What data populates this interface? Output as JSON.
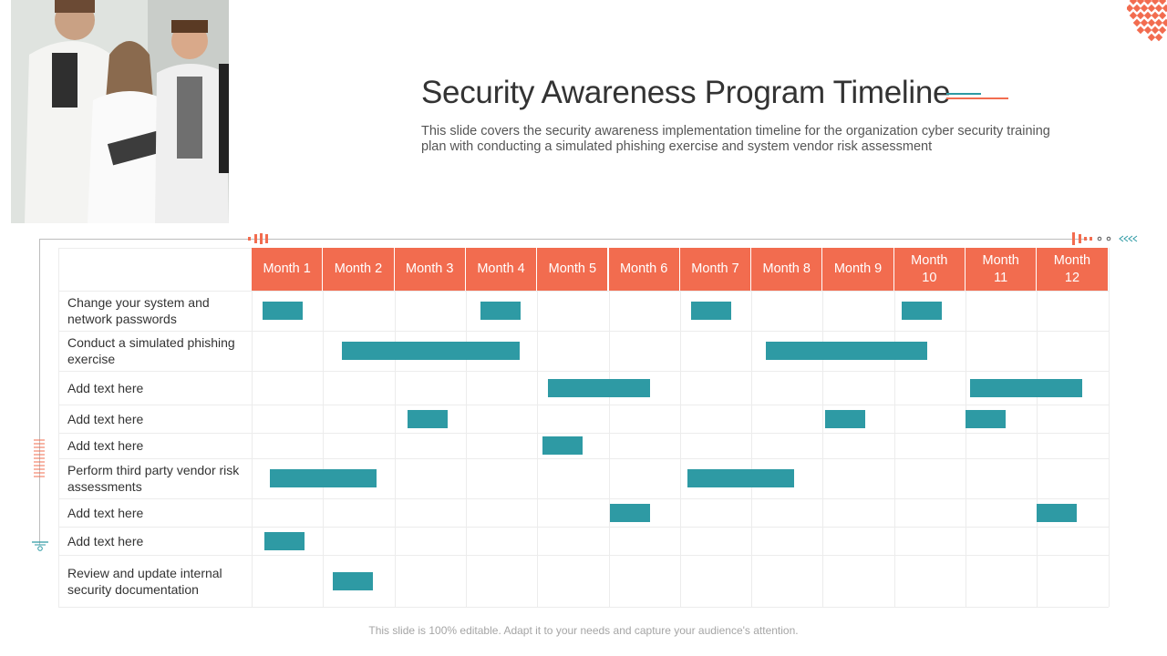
{
  "header": {
    "title": "Security Awareness Program Timeline",
    "subtitle": "This slide covers the security awareness implementation timeline for the organization cyber security training plan with conducting a simulated phishing exercise and system vendor risk assessment"
  },
  "photo": {
    "icon": "people-photo"
  },
  "colors": {
    "accent": "#f26c4f",
    "bar": "#2e9aa4",
    "title_deco_teal": "#2e9aa4"
  },
  "timeline": {
    "months": [
      "Month 1",
      "Month 2",
      "Month 3",
      "Month 4",
      "Month 5",
      "Month 6",
      "Month 7",
      "Month 8",
      "Month 9",
      "Month 10",
      "Month 11",
      "Month 12"
    ],
    "rows": [
      {
        "label": "Change your system and network passwords",
        "bars": [
          {
            "start": 1.15,
            "end": 1.72
          },
          {
            "start": 4.2,
            "end": 4.77
          },
          {
            "start": 7.15,
            "end": 7.72
          },
          {
            "start": 10.1,
            "end": 10.67
          }
        ]
      },
      {
        "label": "Conduct a simulated phishing exercise",
        "bars": [
          {
            "start": 2.26,
            "end": 4.75
          },
          {
            "start": 8.2,
            "end": 10.47
          }
        ]
      },
      {
        "label": "Add text here",
        "bars": [
          {
            "start": 5.15,
            "end": 6.58
          },
          {
            "start": 11.06,
            "end": 12.63
          }
        ]
      },
      {
        "label": "Add text here",
        "bars": [
          {
            "start": 3.18,
            "end": 3.74
          },
          {
            "start": 9.03,
            "end": 9.59
          },
          {
            "start": 11.0,
            "end": 11.56
          }
        ]
      },
      {
        "label": "Add text here",
        "bars": [
          {
            "start": 5.07,
            "end": 5.63
          }
        ]
      },
      {
        "label": "Perform third party vendor risk assessments",
        "bars": [
          {
            "start": 1.26,
            "end": 2.75
          },
          {
            "start": 7.11,
            "end": 8.6
          }
        ]
      },
      {
        "label": "Add text here",
        "bars": [
          {
            "start": 6.02,
            "end": 6.58
          },
          {
            "start": 12.0,
            "end": 12.56
          }
        ]
      },
      {
        "label": "Add text here",
        "bars": [
          {
            "start": 1.18,
            "end": 1.74
          }
        ]
      },
      {
        "label": "Review and update internal security documentation",
        "bars": [
          {
            "start": 2.14,
            "end": 2.7
          }
        ]
      }
    ]
  },
  "footer": {
    "note": "This slide is 100% editable. Adapt it to your needs and capture your audience's attention."
  }
}
